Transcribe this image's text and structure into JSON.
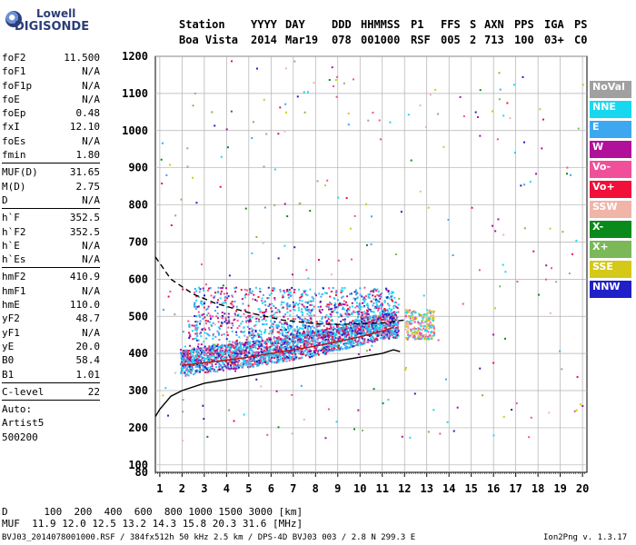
{
  "logo": {
    "top": "Lowell",
    "bottom": "DIGISONDE"
  },
  "header": {
    "labels": [
      "Station",
      "YYYY",
      "DAY",
      "DDD",
      "HHMMSS",
      "P1",
      "FFS",
      "S",
      "AXN",
      "PPS",
      "IGA",
      "PS"
    ],
    "values": [
      "Boa Vista",
      "2014",
      "Mar19",
      "078",
      "001000",
      "RSF",
      "005",
      "2",
      "713",
      "100",
      "03+",
      "C0"
    ]
  },
  "params": [
    {
      "name": "foF2",
      "value": "11.500"
    },
    {
      "name": "foF1",
      "value": "N/A"
    },
    {
      "name": "foF1p",
      "value": "N/A"
    },
    {
      "name": "foE",
      "value": "N/A"
    },
    {
      "name": "foEp",
      "value": "0.48"
    },
    {
      "name": "fxI",
      "value": "12.10"
    },
    {
      "name": "foEs",
      "value": "N/A"
    },
    {
      "name": "fmin",
      "value": "1.80"
    },
    {
      "sep": true
    },
    {
      "name": "MUF(D)",
      "value": "31.65"
    },
    {
      "name": "M(D)",
      "value": "2.75"
    },
    {
      "name": "D",
      "value": "N/A"
    },
    {
      "sep": true
    },
    {
      "name": "h`F",
      "value": "352.5"
    },
    {
      "name": "h`F2",
      "value": "352.5"
    },
    {
      "name": "h`E",
      "value": "N/A"
    },
    {
      "name": "h`Es",
      "value": "N/A"
    },
    {
      "sep": true
    },
    {
      "name": "hmF2",
      "value": "410.9"
    },
    {
      "name": "hmF1",
      "value": "N/A"
    },
    {
      "name": "hmE",
      "value": "110.0"
    },
    {
      "name": "yF2",
      "value": "48.7"
    },
    {
      "name": "yF1",
      "value": "N/A"
    },
    {
      "name": "yE",
      "value": "20.0"
    },
    {
      "name": "B0",
      "value": "58.4"
    },
    {
      "name": "B1",
      "value": "1.01"
    },
    {
      "sep": true
    },
    {
      "name": "C-level",
      "value": "22"
    },
    {
      "sep": true
    },
    {
      "name": "Auto:",
      "value": ""
    },
    {
      "name": "Artist5",
      "value": ""
    },
    {
      "name": "500200",
      "value": ""
    }
  ],
  "legend": [
    {
      "label": "NoVal",
      "color": "#a0a0a0"
    },
    {
      "label": "NNE",
      "color": "#18d8f0"
    },
    {
      "label": "E",
      "color": "#3da8f0"
    },
    {
      "label": "W",
      "color": "#b0109a"
    },
    {
      "label": "Vo-",
      "color": "#f0509a"
    },
    {
      "label": "Vo+",
      "color": "#f0103a"
    },
    {
      "label": "SSW",
      "color": "#f0b4a8"
    },
    {
      "label": "X-",
      "color": "#0a8a1a"
    },
    {
      "label": "X+",
      "color": "#7ab858"
    },
    {
      "label": "SSE",
      "color": "#d4c818"
    },
    {
      "label": "NNW",
      "color": "#2020c8"
    }
  ],
  "footer": {
    "d_label": "D",
    "d_values": "100  200  400  600  800 1000 1500 3000 [km]",
    "muf_label": "MUF",
    "muf_values": "11.9 12.0 12.5 13.2 14.3 15.8 20.3 31.6 [MHz]",
    "file_info": "BVJ03_2014078001000.RSF / 384fx512h 50 kHz 2.5 km / DPS-4D BVJ03 003 / 2.8 N 299.3 E",
    "version": "Ion2Png v. 1.3.17"
  },
  "chart_data": {
    "type": "scatter",
    "title": "",
    "xlabel": "",
    "ylabel": "",
    "xlim": [
      0.8,
      20.2
    ],
    "ylim": [
      80,
      1200
    ],
    "x_ticks": [
      1,
      2,
      3,
      4,
      5,
      6,
      7,
      8,
      9,
      10,
      11,
      12,
      13,
      14,
      15,
      16,
      17,
      18,
      19,
      20
    ],
    "y_ticks": [
      80,
      100,
      200,
      300,
      400,
      500,
      600,
      700,
      800,
      900,
      1000,
      1100,
      1200
    ],
    "grid": true,
    "series": [
      {
        "kind": "curve",
        "color": "#000000",
        "dash": false,
        "x": [
          0.8,
          1.0,
          1.5,
          2.0,
          3.0,
          4.0,
          5.0,
          6.0,
          7.0,
          8.0,
          9.0,
          10.0,
          11.0,
          11.5,
          11.8
        ],
        "y": [
          230,
          250,
          285,
          300,
          320,
          330,
          340,
          350,
          360,
          370,
          380,
          390,
          400,
          410,
          405
        ]
      },
      {
        "kind": "curve",
        "color": "#000000",
        "dash": true,
        "x": [
          0.8,
          1.5,
          2.5,
          3.5,
          5.0,
          6.5,
          8.0,
          9.0,
          10.0,
          11.0,
          12.0
        ],
        "y": [
          660,
          600,
          560,
          535,
          510,
          490,
          480,
          478,
          480,
          482,
          490
        ]
      },
      {
        "kind": "curve",
        "color": "#c01010",
        "dash": false,
        "x": [
          2.0,
          3.0,
          4.0,
          5.0,
          6.0,
          7.0,
          8.0,
          9.0,
          10.0,
          11.0,
          11.5
        ],
        "y": [
          368,
          375,
          382,
          390,
          400,
          410,
          420,
          432,
          445,
          460,
          470
        ]
      },
      {
        "kind": "cloud",
        "name": "F trace",
        "x": [
          1.9,
          2.5,
          3.0,
          4.0,
          5.0,
          6.0,
          7.0,
          8.0,
          9.0,
          10.0,
          11.0,
          11.7
        ],
        "y": [
          375,
          380,
          385,
          392,
          400,
          410,
          420,
          430,
          445,
          460,
          475,
          480
        ]
      }
    ]
  }
}
